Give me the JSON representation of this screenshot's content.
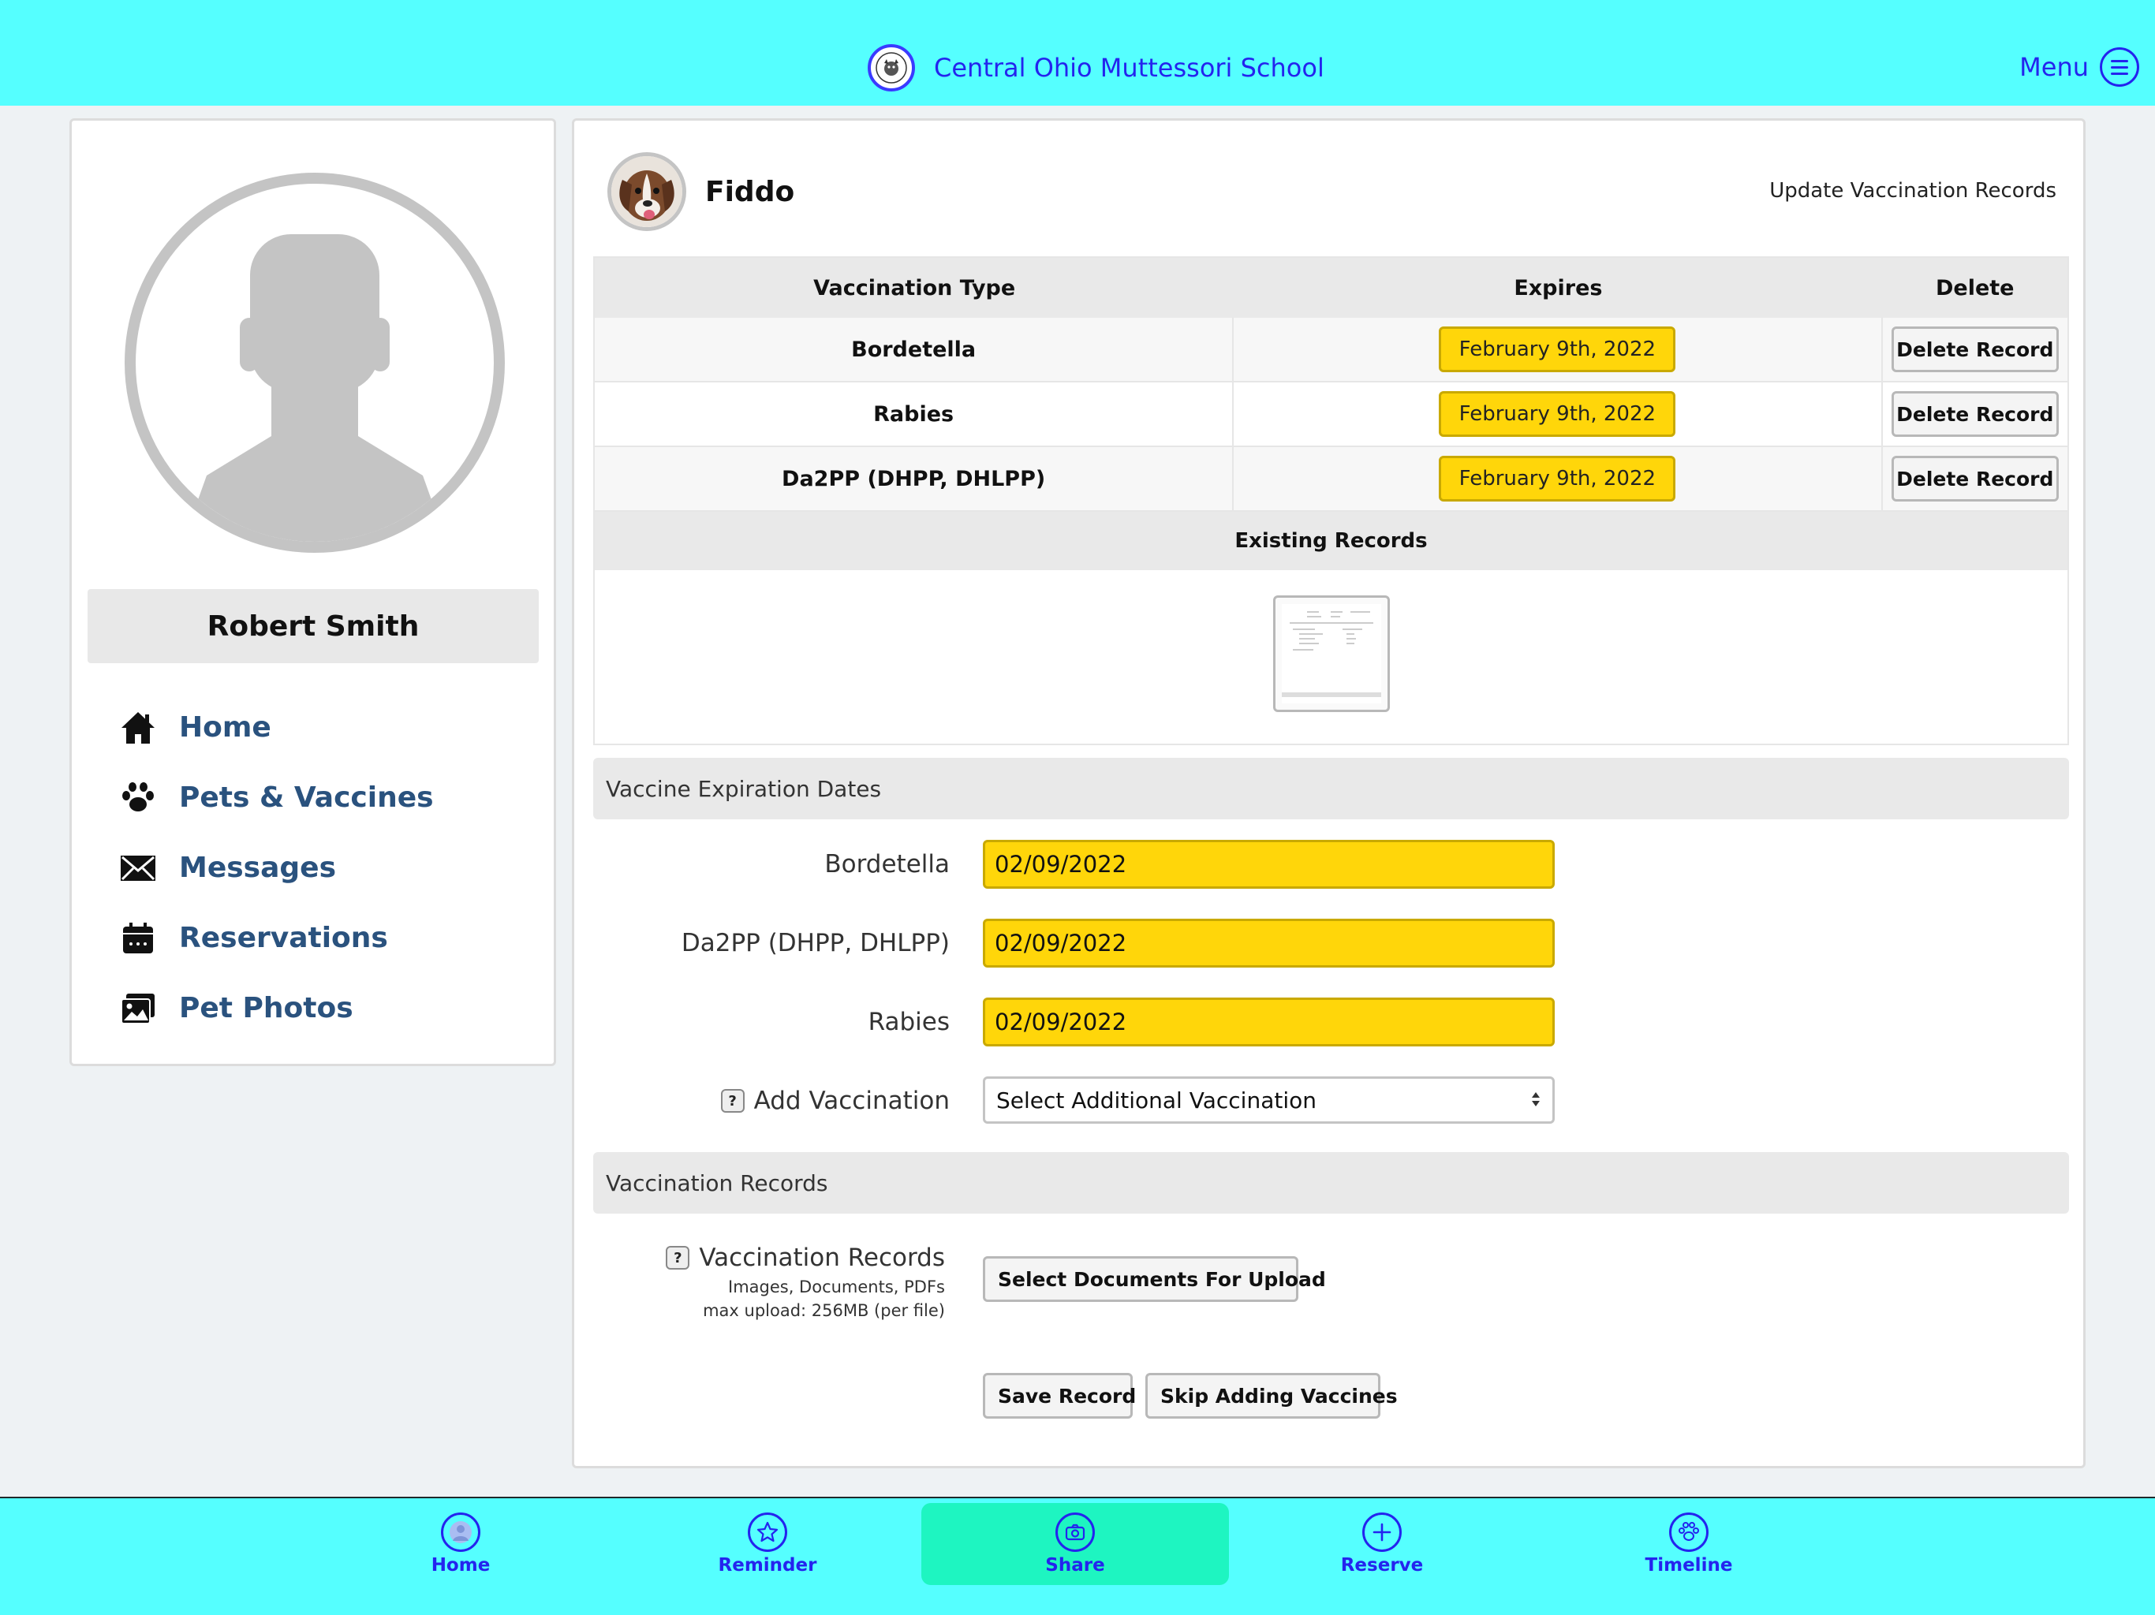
{
  "header": {
    "school_name": "Central Ohio Muttessori School",
    "menu_label": "Menu"
  },
  "sidebar": {
    "profile_name": "Robert Smith",
    "items": [
      {
        "label": "Home",
        "icon": "home-icon"
      },
      {
        "label": "Pets & Vaccines",
        "icon": "paw-icon"
      },
      {
        "label": "Messages",
        "icon": "envelope-icon"
      },
      {
        "label": "Reservations",
        "icon": "calendar-icon"
      },
      {
        "label": "Pet Photos",
        "icon": "photos-icon"
      }
    ]
  },
  "pet": {
    "name": "Fiddo",
    "update_link": "Update Vaccination Records"
  },
  "vaccine_table": {
    "headers": {
      "type": "Vaccination Type",
      "expires": "Expires",
      "delete": "Delete"
    },
    "rows": [
      {
        "type": "Bordetella",
        "expires": "February 9th, 2022",
        "action": "Delete Record"
      },
      {
        "type": "Rabies",
        "expires": "February 9th, 2022",
        "action": "Delete Record"
      },
      {
        "type": "Da2PP (DHPP, DHLPP)",
        "expires": "February 9th, 2022",
        "action": "Delete Record"
      }
    ],
    "existing_records_label": "Existing Records"
  },
  "expiration_section": {
    "title": "Vaccine Expiration Dates",
    "fields": [
      {
        "label": "Bordetella",
        "value": "02/09/2022"
      },
      {
        "label": "Da2PP (DHPP, DHLPP)",
        "value": "02/09/2022"
      },
      {
        "label": "Rabies",
        "value": "02/09/2022"
      }
    ],
    "add_vaccination": {
      "help": "?",
      "label": "Add Vaccination",
      "selected": "Select Additional Vaccination"
    }
  },
  "records_section": {
    "title": "Vaccination Records",
    "help": "?",
    "label": "Vaccination Records",
    "sub1": "Images, Documents, PDFs",
    "sub2": "max upload: 256MB (per file)",
    "upload_button": "Select Documents For Upload"
  },
  "actions": {
    "save": "Save Record",
    "skip": "Skip Adding Vaccines"
  },
  "bottom_nav": [
    {
      "label": "Home",
      "icon": "person-icon"
    },
    {
      "label": "Reminder",
      "icon": "star-icon"
    },
    {
      "label": "Share",
      "icon": "camera-icon",
      "active": true
    },
    {
      "label": "Reserve",
      "icon": "plus-icon"
    },
    {
      "label": "Timeline",
      "icon": "paw-icon"
    }
  ],
  "colors": {
    "header_bg": "#55ffff",
    "accent_blue": "#2424ee",
    "highlight_yellow": "#ffd60a",
    "active_tab": "#1ef5c1",
    "nav_text": "#2a527e"
  }
}
